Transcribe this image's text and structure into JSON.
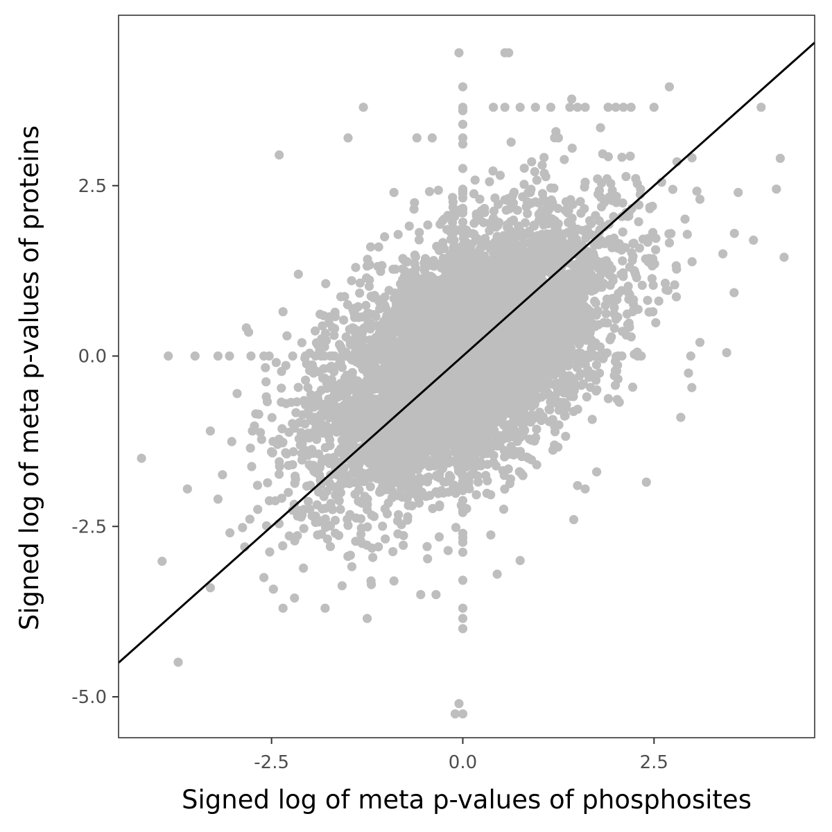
{
  "chart_data": {
    "type": "scatter",
    "title": "",
    "xlabel": "Signed log of meta p-values of phosphosites",
    "ylabel": "Signed log of meta p-values of proteins",
    "xlim": [
      -4.5,
      4.6
    ],
    "ylim": [
      -5.6,
      5.0
    ],
    "x_ticks": [
      -2.5,
      0.0,
      2.5
    ],
    "x_tick_labels": [
      "-2.5",
      "0.0",
      "2.5"
    ],
    "y_ticks": [
      -5.0,
      -2.5,
      0.0,
      2.5
    ],
    "y_tick_labels": [
      "-5.0",
      "-2.5",
      "0.0",
      "2.5"
    ],
    "grid": false,
    "legend": "none",
    "point_color": "#bebebe",
    "line_color": "#000000",
    "reference_line": {
      "slope": 1.0,
      "intercept": 0.0,
      "x_range": [
        -4.5,
        4.6
      ]
    },
    "cloud": {
      "description_points": 6000,
      "center": [
        0.0,
        0.0
      ],
      "sd_x": 0.95,
      "sd_y": 1.0,
      "correlation": 0.55
    },
    "outlier_points": [
      [
        -4.2,
        -1.5
      ],
      [
        -3.85,
        0.0
      ],
      [
        -3.5,
        0.0
      ],
      [
        -3.6,
        -1.95
      ],
      [
        -3.3,
        -1.1
      ],
      [
        -3.2,
        -2.1
      ],
      [
        -3.2,
        0.0
      ],
      [
        -3.05,
        0.0
      ],
      [
        -2.95,
        -0.55
      ],
      [
        -2.85,
        -2.8
      ],
      [
        -3.3,
        -3.4
      ],
      [
        -2.8,
        0.35
      ],
      [
        -2.75,
        -1.1
      ],
      [
        -2.6,
        -3.25
      ],
      [
        -2.35,
        -3.7
      ],
      [
        -2.6,
        0.0
      ],
      [
        -2.35,
        0.65
      ],
      [
        -2.2,
        -3.55
      ],
      [
        -2.15,
        1.2
      ],
      [
        -1.95,
        -0.25
      ],
      [
        -1.8,
        -3.7
      ],
      [
        -1.5,
        3.2
      ],
      [
        -1.4,
        1.3
      ],
      [
        -1.3,
        3.65
      ],
      [
        -1.25,
        -3.85
      ],
      [
        -1.2,
        -3.3
      ],
      [
        -1.1,
        1.6
      ],
      [
        -0.9,
        -3.3
      ],
      [
        -0.9,
        2.4
      ],
      [
        -0.6,
        3.2
      ],
      [
        -0.55,
        -3.5
      ],
      [
        -0.4,
        3.2
      ],
      [
        -0.35,
        -3.5
      ],
      [
        -0.05,
        4.45
      ],
      [
        0.0,
        3.95
      ],
      [
        0.0,
        3.65
      ],
      [
        0.0,
        3.4
      ],
      [
        0.0,
        3.2
      ],
      [
        0.0,
        -3.7
      ],
      [
        0.0,
        -3.85
      ],
      [
        0.0,
        -4.0
      ],
      [
        -0.05,
        -5.1
      ],
      [
        0.0,
        -5.25
      ],
      [
        -0.1,
        -5.25
      ],
      [
        0.55,
        4.45
      ],
      [
        0.6,
        4.45
      ],
      [
        0.4,
        3.65
      ],
      [
        0.55,
        3.65
      ],
      [
        0.75,
        3.65
      ],
      [
        0.95,
        3.65
      ],
      [
        1.15,
        3.65
      ],
      [
        1.4,
        3.65
      ],
      [
        1.5,
        3.65
      ],
      [
        1.6,
        3.65
      ],
      [
        1.9,
        3.65
      ],
      [
        2.0,
        3.65
      ],
      [
        2.1,
        3.65
      ],
      [
        2.2,
        3.65
      ],
      [
        2.5,
        3.65
      ],
      [
        2.7,
        3.95
      ],
      [
        3.9,
        3.65
      ],
      [
        3.1,
        2.3
      ],
      [
        3.6,
        2.4
      ],
      [
        4.15,
        2.9
      ],
      [
        4.1,
        2.45
      ],
      [
        3.55,
        1.8
      ],
      [
        3.8,
        1.7
      ],
      [
        4.2,
        1.45
      ],
      [
        3.4,
        1.5
      ],
      [
        3.45,
        0.05
      ],
      [
        3.1,
        0.2
      ],
      [
        2.95,
        -0.25
      ],
      [
        2.85,
        -0.9
      ],
      [
        2.4,
        -1.85
      ],
      [
        1.6,
        -1.95
      ],
      [
        1.5,
        -1.9
      ],
      [
        1.75,
        -1.7
      ],
      [
        1.45,
        -2.4
      ],
      [
        2.8,
        2.85
      ],
      [
        2.6,
        2.55
      ],
      [
        0.9,
        2.85
      ],
      [
        1.25,
        3.2
      ],
      [
        1.6,
        2.55
      ],
      [
        0.75,
        -3.0
      ],
      [
        0.45,
        -3.2
      ],
      [
        -2.4,
        2.95
      ],
      [
        -1.6,
        -2.25
      ]
    ]
  }
}
